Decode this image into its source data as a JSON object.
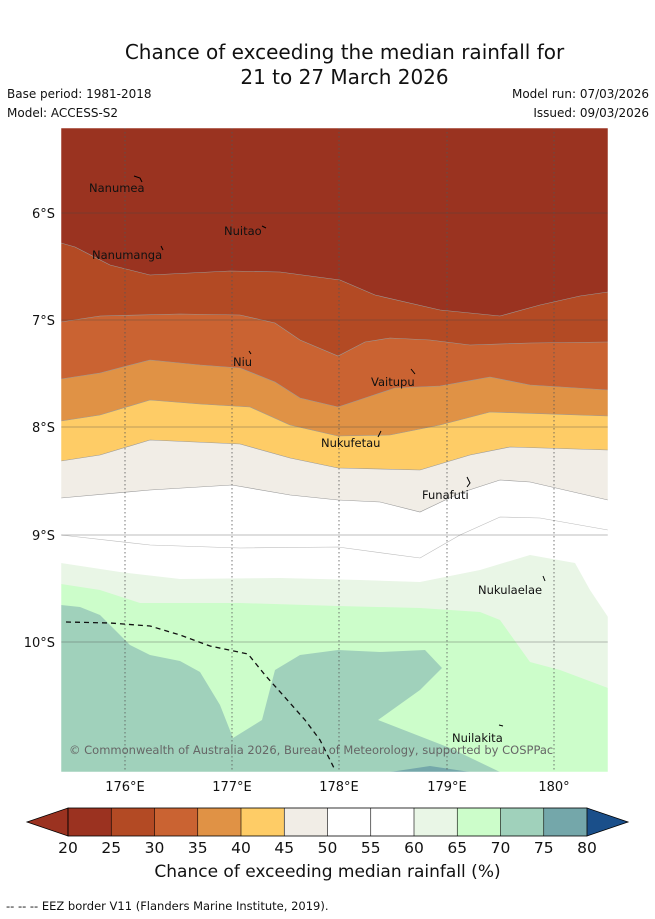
{
  "title": {
    "line1": "Chance of exceeding the median rainfall for",
    "line2": "21 to 27 March 2026"
  },
  "meta": {
    "base_period": "Base period: 1981-2018",
    "model": "Model: ACCESS-S2",
    "model_run": "Model run: 07/03/2026",
    "issued": "Issued: 09/03/2026"
  },
  "map": {
    "lat_labels": [
      "6°S",
      "7°S",
      "8°S",
      "9°S",
      "10°S"
    ],
    "lon_labels": [
      "176°E",
      "177°E",
      "178°E",
      "179°E",
      "180°"
    ],
    "places": [
      "Nanumea",
      "Nuitao",
      "Nanumanga",
      "Niu",
      "Vaitupu",
      "Nukufetau",
      "Funafuti",
      "Nukulaelae",
      "Nuilakita"
    ],
    "copyright": "© Commonwealth of Australia 2026, Bureau of Meteorology, supported by COSPPac"
  },
  "colorbar": {
    "ticks": [
      "20",
      "25",
      "30",
      "35",
      "40",
      "45",
      "50",
      "55",
      "60",
      "65",
      "70",
      "75",
      "80"
    ],
    "colors": [
      "#9b3220",
      "#b34a24",
      "#ca6332",
      "#e09245",
      "#fecc66",
      "#f1ede6",
      "#ffffff",
      "#ffffff",
      "#e9f6e6",
      "#ccfdca",
      "#a0d1bb",
      "#74a7aa",
      "#417c9e"
    ],
    "under_color": "#9b3220",
    "over_color": "#1a4f8a",
    "title": "Chance of exceeding median rainfall (%)"
  },
  "footer": "--  --  -- EEZ border V11 (Flanders Marine Institute, 2019)."
}
